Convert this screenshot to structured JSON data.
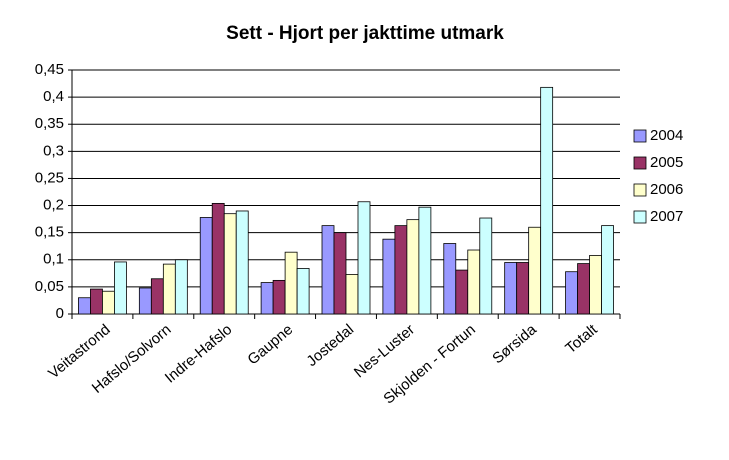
{
  "chart_data": {
    "type": "bar",
    "title": "Sett - Hjort per jakttime utmark",
    "categories": [
      "Veitastrond",
      "Hafslo/Solvorn",
      "Indre-Hafslo",
      "Gaupne",
      "Jostedal",
      "Nes-Luster",
      "Skjolden - Fortun",
      "Sørsida",
      "Totalt"
    ],
    "series": [
      {
        "name": "2004",
        "color": "#9999ff",
        "values": [
          0.03,
          0.048,
          0.178,
          0.058,
          0.163,
          0.138,
          0.13,
          0.095,
          0.078
        ]
      },
      {
        "name": "2005",
        "color": "#993366",
        "values": [
          0.046,
          0.065,
          0.204,
          0.062,
          0.15,
          0.163,
          0.081,
          0.095,
          0.093
        ]
      },
      {
        "name": "2006",
        "color": "#ffffcc",
        "values": [
          0.042,
          0.092,
          0.185,
          0.114,
          0.073,
          0.174,
          0.118,
          0.16,
          0.108
        ]
      },
      {
        "name": "2007",
        "color": "#ccffff",
        "values": [
          0.096,
          0.1,
          0.19,
          0.084,
          0.207,
          0.197,
          0.177,
          0.418,
          0.163
        ]
      }
    ],
    "ylim": [
      0,
      0.45
    ],
    "yticks": [
      0,
      {
        "value": 0.05,
        "label": "0,05"
      },
      {
        "value": 0.1,
        "label": "0,1"
      },
      {
        "value": 0.15,
        "label": "0,15"
      },
      {
        "value": 0.2,
        "label": "0,2"
      },
      {
        "value": 0.25,
        "label": "0,25"
      },
      {
        "value": 0.3,
        "label": "0,3"
      },
      {
        "value": 0.35,
        "label": "0,35"
      },
      {
        "value": 0.4,
        "label": "0,4"
      },
      {
        "value": 0.45,
        "label": "0,45"
      }
    ],
    "grid": true,
    "legend": "right"
  }
}
